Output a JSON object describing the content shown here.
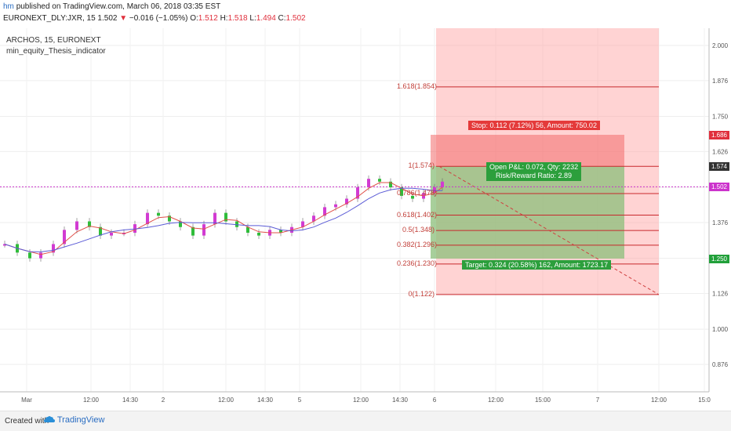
{
  "header": {
    "user": "hm",
    "published": "published on TradingView.com, March 06, 2018 03:35 EST",
    "symbol": "EURONEXT_DLY:JXR, 15",
    "last": "1.502",
    "change": "−0.016 (−1.05%)",
    "open_label": "O:",
    "open": "1.512",
    "high_label": "H:",
    "high": "1.518",
    "low_label": "L:",
    "low": "1.494",
    "close_label": "C:",
    "close": "1.502"
  },
  "overlay": {
    "main": "ARCHOS, 15, EURONEXT",
    "indicator": "min_equity_Thesis_indicator"
  },
  "fib_levels": [
    {
      "label": "1.618(1.854)",
      "price": 1.854
    },
    {
      "label": "1(1.574)",
      "price": 1.574
    },
    {
      "label": "0.786(1.478)",
      "price": 1.478
    },
    {
      "label": "0.618(1.402)",
      "price": 1.402
    },
    {
      "label": "0.5(1.348)",
      "price": 1.348
    },
    {
      "label": "0.382(1.296)",
      "price": 1.296
    },
    {
      "label": "0.236(1.230)",
      "price": 1.23
    },
    {
      "label": "0(1.122)",
      "price": 1.122
    }
  ],
  "position": {
    "stop": "Stop: 0.112 (7.12%) 56, Amount: 750.02",
    "open_pl": "Open P&L: 0.072, Qty: 2232",
    "risk_reward": "Risk/Reward Ratio: 2.89",
    "target": "Target: 0.324 (20.58%) 162, Amount: 1723.17"
  },
  "y_axis": [
    "2.000",
    "1.876",
    "1.750",
    "1.626",
    "1.500",
    "1.376",
    "1.250",
    "1.126",
    "1.000",
    "0.876"
  ],
  "price_tags": [
    {
      "text": "1.686",
      "color": "#e0303d"
    },
    {
      "text": "1.574",
      "color": "#333333"
    },
    {
      "text": "1.502",
      "color": "#cc33cc"
    },
    {
      "text": "1.250",
      "color": "#21a03a"
    }
  ],
  "x_axis": [
    "Mar",
    "12:00",
    "14:30",
    "2",
    "12:00",
    "14:30",
    "5",
    "12:00",
    "14:30",
    "6",
    "12:00",
    "15:00",
    "7",
    "12:00",
    "15:0"
  ],
  "colors": {
    "up": "#d23bd2",
    "down": "#2fbd3a",
    "stop_zone": "#ff9d9d",
    "target_zone": "#8bbf7a",
    "fib_line": "#c8282d",
    "ma_red": "#e0504a",
    "ma_blue": "#5b5bd6"
  },
  "footer": {
    "created": "Created with",
    "brand": "TradingView"
  }
}
